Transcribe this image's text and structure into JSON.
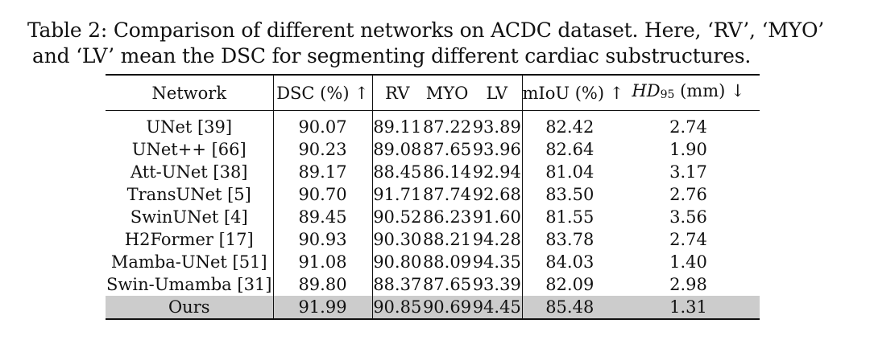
{
  "caption": {
    "line1": "Table 2: Comparison of different networks on ACDC dataset. Here, ‘RV’, ‘MYO’",
    "line2": "and ‘LV’ mean the DSC for segmenting different cardiac substructures."
  },
  "table": {
    "headers": {
      "network": "Network",
      "dsc": "DSC (%) ↑",
      "rv": "RV",
      "myo": "MYO",
      "lv": "LV",
      "miou": "mIoU (%) ↑",
      "hd_main": "HD",
      "hd_sub": "95",
      "hd_unit": " (mm) ↓"
    },
    "rows": [
      {
        "network": "UNet [39]",
        "dsc": "90.07",
        "rv": "89.11",
        "myo": "87.22",
        "lv": "93.89",
        "miou": "82.42",
        "hd": "2.74"
      },
      {
        "network": "UNet++ [66]",
        "dsc": "90.23",
        "rv": "89.08",
        "myo": "87.65",
        "lv": "93.96",
        "miou": "82.64",
        "hd": "1.90"
      },
      {
        "network": "Att-UNet [38]",
        "dsc": "89.17",
        "rv": "88.45",
        "myo": "86.14",
        "lv": "92.94",
        "miou": "81.04",
        "hd": "3.17"
      },
      {
        "network": "TransUNet [5]",
        "dsc": "90.70",
        "rv": "91.71",
        "myo": "87.74",
        "lv": "92.68",
        "miou": "83.50",
        "hd": "2.76"
      },
      {
        "network": "SwinUNet [4]",
        "dsc": "89.45",
        "rv": "90.52",
        "myo": "86.23",
        "lv": "91.60",
        "miou": "81.55",
        "hd": "3.56"
      },
      {
        "network": "H2Former [17]",
        "dsc": "90.93",
        "rv": "90.30",
        "myo": "88.21",
        "lv": "94.28",
        "miou": "83.78",
        "hd": "2.74"
      },
      {
        "network": "Mamba-UNet [51]",
        "dsc": "91.08",
        "rv": "90.80",
        "myo": "88.09",
        "lv": "94.35",
        "miou": "84.03",
        "hd": "1.40"
      },
      {
        "network": "Swin-Umamba [31]",
        "dsc": "89.80",
        "rv": "88.37",
        "myo": "87.65",
        "lv": "93.39",
        "miou": "82.09",
        "hd": "2.98"
      },
      {
        "network": "Ours",
        "dsc": "91.99",
        "rv": "90.85",
        "myo": "90.69",
        "lv": "94.45",
        "miou": "85.48",
        "hd": "1.31"
      }
    ],
    "highlight_color": "#cccccc"
  }
}
